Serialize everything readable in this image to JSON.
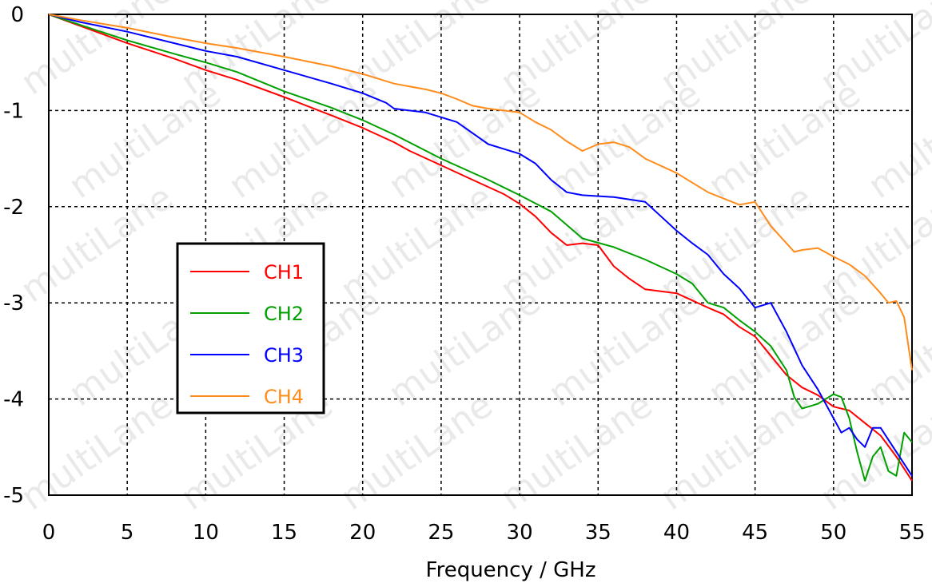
{
  "chart_data": {
    "type": "line",
    "title": "",
    "xlabel": "Frequency / GHz",
    "ylabel": "",
    "xlim": [
      0,
      55
    ],
    "ylim": [
      -5,
      0
    ],
    "xticks": [
      "0",
      "5",
      "10",
      "15",
      "20",
      "25",
      "30",
      "35",
      "40",
      "45",
      "50",
      "55"
    ],
    "yticks": [
      "0",
      "-1",
      "-2",
      "-3",
      "-4",
      "-5"
    ],
    "grid": true,
    "legend_position": "center-left",
    "watermark": "multiLane",
    "series": [
      {
        "name": "CH1",
        "color": "#ff0000",
        "x": [
          0,
          2,
          5,
          8,
          10,
          12,
          15,
          18,
          20,
          22,
          23,
          25,
          27,
          29,
          30,
          31,
          32,
          33,
          34,
          35,
          36,
          37,
          38,
          40,
          42,
          43,
          44,
          45,
          46,
          47,
          48,
          49,
          50,
          51,
          52,
          53,
          54,
          55
        ],
        "y": [
          0,
          -0.12,
          -0.3,
          -0.46,
          -0.58,
          -0.68,
          -0.86,
          -1.05,
          -1.18,
          -1.33,
          -1.42,
          -1.57,
          -1.72,
          -1.87,
          -1.97,
          -2.1,
          -2.27,
          -2.4,
          -2.38,
          -2.4,
          -2.62,
          -2.75,
          -2.86,
          -2.9,
          -3.05,
          -3.12,
          -3.25,
          -3.35,
          -3.55,
          -3.75,
          -3.88,
          -3.96,
          -4.08,
          -4.12,
          -4.25,
          -4.38,
          -4.6,
          -4.85
        ]
      },
      {
        "name": "CH2",
        "color": "#00a000",
        "x": [
          0,
          2,
          5,
          8,
          10,
          12,
          15,
          18,
          20,
          22,
          25,
          28,
          30,
          32,
          34,
          36,
          38,
          40,
          41,
          42,
          43,
          44,
          45,
          46,
          47,
          47.5,
          48,
          49,
          50,
          50.5,
          51,
          51.5,
          52,
          52.5,
          53,
          53.5,
          54,
          54.5,
          55
        ],
        "y": [
          0,
          -0.11,
          -0.27,
          -0.41,
          -0.5,
          -0.6,
          -0.8,
          -0.97,
          -1.1,
          -1.25,
          -1.5,
          -1.72,
          -1.88,
          -2.05,
          -2.33,
          -2.42,
          -2.55,
          -2.7,
          -2.8,
          -3.0,
          -3.05,
          -3.18,
          -3.3,
          -3.45,
          -3.7,
          -3.98,
          -4.1,
          -4.05,
          -3.95,
          -3.98,
          -4.2,
          -4.55,
          -4.85,
          -4.6,
          -4.5,
          -4.75,
          -4.8,
          -4.35,
          -4.45
        ]
      },
      {
        "name": "CH3",
        "color": "#0000ff",
        "x": [
          0,
          2,
          5,
          8,
          10,
          12,
          15,
          18,
          20,
          21.5,
          22,
          24,
          26,
          28,
          30,
          31,
          32,
          33,
          34,
          36,
          38,
          39,
          40,
          41,
          42,
          43,
          44,
          45,
          46,
          47,
          48,
          49,
          50,
          50.5,
          51,
          51.5,
          52,
          52.5,
          53,
          54,
          55
        ],
        "y": [
          0,
          -0.08,
          -0.18,
          -0.3,
          -0.38,
          -0.44,
          -0.58,
          -0.72,
          -0.82,
          -0.92,
          -0.98,
          -1.02,
          -1.12,
          -1.35,
          -1.45,
          -1.55,
          -1.72,
          -1.85,
          -1.88,
          -1.9,
          -1.95,
          -2.1,
          -2.25,
          -2.38,
          -2.5,
          -2.7,
          -2.85,
          -3.05,
          -3.0,
          -3.3,
          -3.65,
          -3.9,
          -4.2,
          -4.35,
          -4.3,
          -4.42,
          -4.5,
          -4.3,
          -4.3,
          -4.55,
          -4.8
        ]
      },
      {
        "name": "CH4",
        "color": "#ff8c1a",
        "x": [
          0,
          2,
          5,
          8,
          10,
          12,
          15,
          18,
          20,
          22,
          24,
          25,
          26,
          27,
          28,
          29,
          30,
          31,
          32,
          33,
          34,
          35,
          36,
          37,
          38,
          40,
          42,
          44,
          45,
          46,
          47,
          47.5,
          48,
          49,
          50,
          51,
          52,
          53,
          53.5,
          54,
          54.5,
          55
        ],
        "y": [
          0,
          -0.06,
          -0.14,
          -0.24,
          -0.3,
          -0.35,
          -0.44,
          -0.54,
          -0.62,
          -0.72,
          -0.78,
          -0.82,
          -0.88,
          -0.95,
          -0.98,
          -1.0,
          -1.02,
          -1.12,
          -1.2,
          -1.32,
          -1.42,
          -1.35,
          -1.33,
          -1.38,
          -1.5,
          -1.65,
          -1.85,
          -1.98,
          -1.95,
          -2.2,
          -2.38,
          -2.47,
          -2.45,
          -2.43,
          -2.52,
          -2.6,
          -2.72,
          -2.9,
          -3.0,
          -2.98,
          -3.15,
          -3.7
        ]
      }
    ]
  }
}
